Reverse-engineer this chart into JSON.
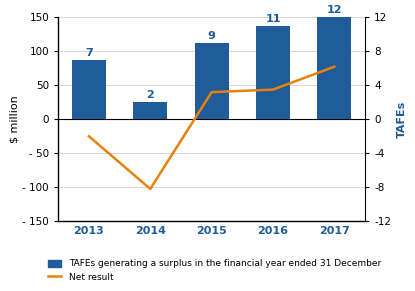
{
  "years": [
    "2013",
    "2014",
    "2015",
    "2016",
    "2017"
  ],
  "bar_values": [
    88,
    25,
    112,
    137,
    150
  ],
  "bar_labels": [
    7,
    2,
    9,
    11,
    12
  ],
  "net_result_tafe_units": [
    -2.0,
    -8.2,
    3.2,
    3.5,
    6.2
  ],
  "bar_color": "#1F5C99",
  "line_color": "#E8820C",
  "bar_ylabel": "$ million",
  "line_ylabel": "TAFEs",
  "ylim_left": [
    -150,
    150
  ],
  "ylim_right": [
    -12,
    12
  ],
  "yticks_left": [
    -150,
    -100,
    -50,
    0,
    50,
    100,
    150
  ],
  "yticks_right": [
    -12,
    -8,
    -4,
    0,
    4,
    8,
    12
  ],
  "legend_bar": "TAFEs generating a surplus in the financial year ended 31 December",
  "legend_line": "Net result",
  "label_color": "#1F5C99",
  "right_tick_color": "#000000"
}
